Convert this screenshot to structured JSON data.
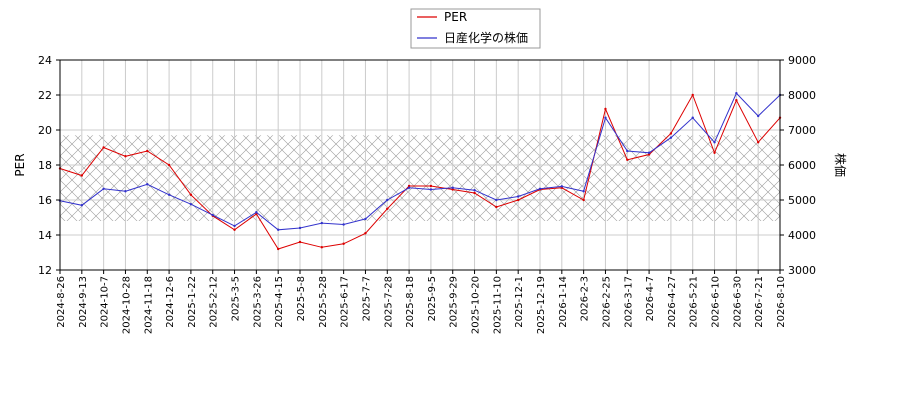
{
  "chart_data": {
    "type": "line",
    "title": "",
    "xlabel": "",
    "y_left_label": "PER",
    "y_right_label": "株価",
    "y_left_lim": [
      12,
      24
    ],
    "y_right_lim": [
      3000,
      9000
    ],
    "y_left_ticks": [
      12,
      14,
      16,
      18,
      20,
      22,
      24
    ],
    "y_right_ticks": [
      3000,
      4000,
      5000,
      6000,
      7000,
      8000,
      9000
    ],
    "x_ticks": [
      "2024-8-26",
      "2024-9-13",
      "2024-10-7",
      "2024-10-28",
      "2024-11-18",
      "2024-12-6",
      "2025-1-22",
      "2025-2-12",
      "2025-3-5",
      "2025-3-26",
      "2025-4-15",
      "2025-5-8",
      "2025-5-28",
      "2025-6-17",
      "2025-7-7",
      "2025-7-28",
      "2025-8-18",
      "2025-9-5",
      "2025-9-29",
      "2025-10-20",
      "2025-11-10",
      "2025-12-1",
      "2025-12-19",
      "2026-1-14",
      "2026-2-3",
      "2026-2-25",
      "2026-3-17",
      "2026-4-7",
      "2026-4-27",
      "2026-5-21",
      "2026-6-10",
      "2026-6-30",
      "2026-7-21",
      "2026-8-10"
    ],
    "hatched_band": {
      "axis": "left",
      "from": 14.8,
      "to": 19.7
    },
    "grid": true,
    "legend": {
      "position": "top-center"
    },
    "series": [
      {
        "name": "PER",
        "axis": "left",
        "color": "#dd0000",
        "x": [
          "2024-8-26",
          "2024-9-13",
          "2024-10-7",
          "2024-10-28",
          "2024-11-18",
          "2024-12-6",
          "2025-1-22",
          "2025-2-12",
          "2025-3-5",
          "2025-3-26",
          "2025-4-15",
          "2025-5-8",
          "2025-5-28",
          "2025-6-17",
          "2025-7-7",
          "2025-7-28",
          "2025-8-18",
          "2025-9-5",
          "2025-9-29",
          "2025-10-20",
          "2025-11-10",
          "2025-12-1",
          "2025-12-19",
          "2026-1-14",
          "2026-2-3",
          "2026-2-25",
          "2026-3-17",
          "2026-4-7",
          "2026-4-27",
          "2026-5-21",
          "2026-6-10",
          "2026-6-30",
          "2026-7-21",
          "2026-8-10"
        ],
        "values": [
          17.8,
          17.4,
          19.0,
          18.5,
          18.8,
          18.0,
          16.3,
          15.1,
          14.3,
          15.2,
          13.2,
          13.6,
          13.3,
          13.5,
          14.1,
          15.5,
          16.8,
          16.8,
          16.6,
          16.4,
          15.6,
          16.0,
          16.6,
          16.7,
          16.0,
          21.2,
          18.3,
          18.6,
          19.8,
          22.0,
          18.7,
          21.7,
          19.3,
          20.7
        ]
      },
      {
        "name": "日産化学の株価",
        "axis": "right",
        "color": "#3333cc",
        "x": [
          "2024-8-26",
          "2024-9-13",
          "2024-10-7",
          "2024-10-28",
          "2024-11-18",
          "2024-12-6",
          "2025-1-22",
          "2025-2-12",
          "2025-3-5",
          "2025-3-26",
          "2025-4-15",
          "2025-5-8",
          "2025-5-28",
          "2025-6-17",
          "2025-7-7",
          "2025-7-28",
          "2025-8-18",
          "2025-9-5",
          "2025-9-29",
          "2025-10-20",
          "2025-11-10",
          "2025-12-1",
          "2025-12-19",
          "2026-1-14",
          "2026-2-3",
          "2026-2-25",
          "2026-3-17",
          "2026-4-7",
          "2026-4-27",
          "2026-5-21",
          "2026-6-10",
          "2026-6-30",
          "2026-7-21",
          "2026-8-10"
        ],
        "values": [
          4980,
          4850,
          5320,
          5250,
          5450,
          5150,
          4880,
          4570,
          4260,
          4650,
          4150,
          4200,
          4340,
          4300,
          4460,
          5000,
          5350,
          5300,
          5350,
          5280,
          5000,
          5100,
          5320,
          5390,
          5250,
          7350,
          6400,
          6350,
          6780,
          7350,
          6650,
          8050,
          7400,
          8000
        ]
      }
    ]
  }
}
